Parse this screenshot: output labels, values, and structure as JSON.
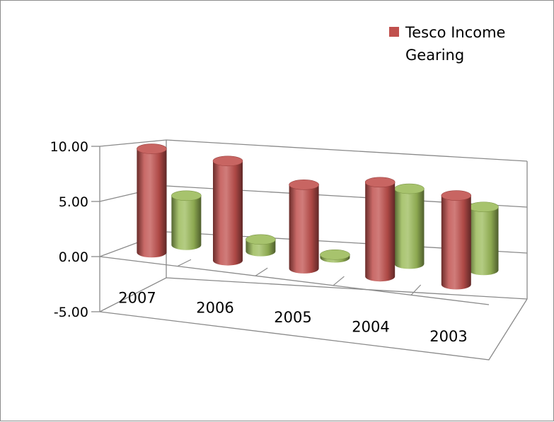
{
  "chart_data": {
    "type": "bar",
    "style": "3d-cylinder",
    "categories": [
      "2007",
      "2006",
      "2005",
      "2004",
      "2003"
    ],
    "series": [
      {
        "name": "Tesco Income Gearing",
        "values": [
          9.9,
          9.5,
          8.0,
          9.0,
          8.5
        ],
        "color": "#c0504d"
      },
      {
        "name": "",
        "values": [
          5.0,
          1.2,
          0.3,
          7.6,
          6.4
        ],
        "color": "#9bbb59"
      }
    ],
    "y_ticks": [
      "10.00",
      "5.00",
      "0.00",
      "-5.00"
    ],
    "ylim": [
      -5,
      10
    ],
    "legend_position": "top-right",
    "grid": true
  }
}
